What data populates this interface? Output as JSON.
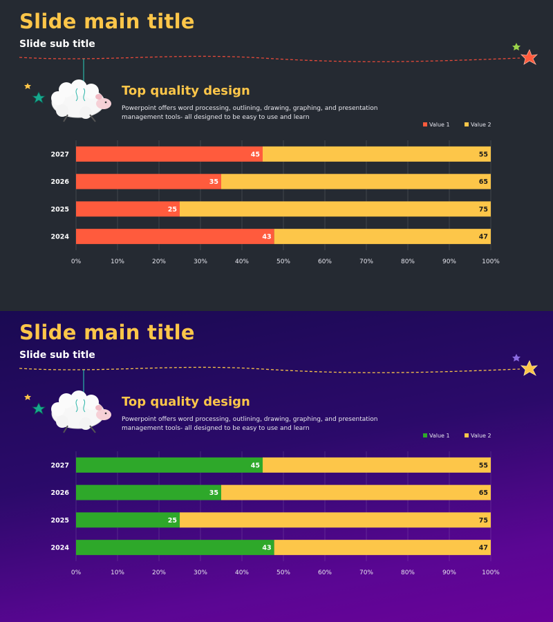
{
  "slides": [
    {
      "title": "Slide main title",
      "subtitle": "Slide sub title",
      "heading": "Top quality design",
      "description": "Powerpoint offers word processing, outlining, drawing, graphing, and presentation management tools- all designed to be easy to use and learn",
      "theme": "dark",
      "colors": {
        "value1": "#ff5b3d",
        "value2": "#fdc649",
        "dash": "#e84a3a",
        "star_big": "#ff5a3c",
        "star_small": "#9bd34a"
      }
    },
    {
      "title": "Slide main title",
      "subtitle": "Slide sub title",
      "heading": "Top quality design",
      "description": "Powerpoint offers word processing, outlining, drawing, graphing, and presentation management tools- all designed to be easy to use and learn",
      "theme": "purple",
      "colors": {
        "value1": "#2ea82a",
        "value2": "#fdc649",
        "dash": "#fdc649",
        "star_big": "#fdc649",
        "star_small": "#8a6be0"
      }
    }
  ],
  "chart_data": [
    {
      "type": "bar",
      "orientation": "horizontal",
      "stacked": "percent",
      "categories": [
        "2027",
        "2026",
        "2025",
        "2024"
      ],
      "series": [
        {
          "name": "Value  1",
          "values": [
            45,
            35,
            25,
            43
          ]
        },
        {
          "name": "Value  2",
          "values": [
            55,
            65,
            75,
            47
          ]
        }
      ],
      "xticks": [
        "0%",
        "10%",
        "20%",
        "30%",
        "40%",
        "50%",
        "60%",
        "70%",
        "80%",
        "90%",
        "100%"
      ],
      "xlim": [
        0,
        100
      ],
      "legend": "top-right",
      "grid": true
    },
    {
      "type": "bar",
      "orientation": "horizontal",
      "stacked": "percent",
      "categories": [
        "2027",
        "2026",
        "2025",
        "2024"
      ],
      "series": [
        {
          "name": "Value  1",
          "values": [
            45,
            35,
            25,
            43
          ]
        },
        {
          "name": "Value  2",
          "values": [
            55,
            65,
            75,
            47
          ]
        }
      ],
      "xticks": [
        "0%",
        "10%",
        "20%",
        "30%",
        "40%",
        "50%",
        "60%",
        "70%",
        "80%",
        "90%",
        "100%"
      ],
      "xlim": [
        0,
        100
      ],
      "legend": "top-right",
      "grid": true
    }
  ]
}
